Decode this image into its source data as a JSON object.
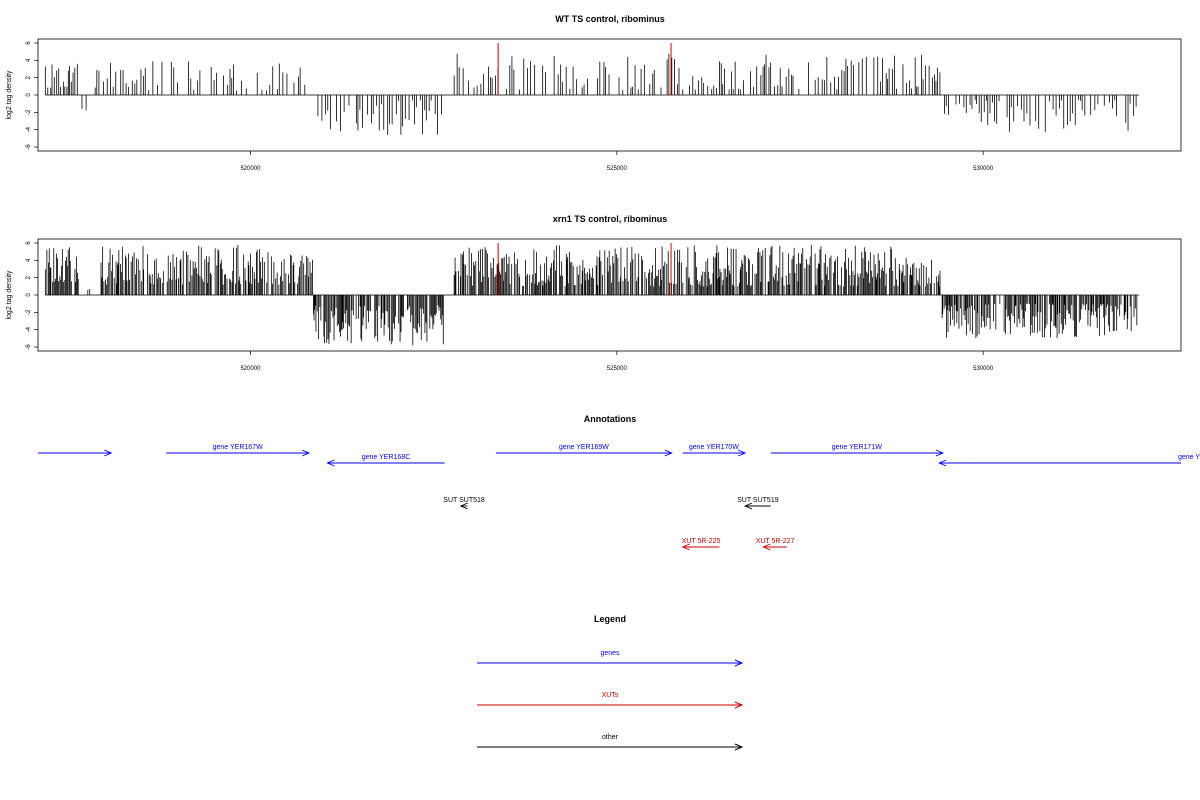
{
  "chart_data": [
    {
      "type": "bar",
      "title": "WT TS control, ribominus",
      "ylabel": "log2 tag density",
      "ylim": [
        -6,
        6
      ],
      "yticks": [
        "6",
        "4",
        "2",
        "0",
        "-2",
        "-4",
        "-6"
      ],
      "xlim": [
        517100,
        532700
      ],
      "xticks": [
        520000,
        525000,
        530000
      ],
      "xtick_labels": [
        "520000",
        "525000",
        "530000"
      ],
      "grid": false,
      "segments": [
        {
          "start": 517200,
          "end": 517650,
          "sign": 1,
          "min": 0.8,
          "max": 3.6,
          "step": 30
        },
        {
          "start": 517700,
          "end": 517780,
          "sign": -1,
          "min": 1.5,
          "max": 2.2,
          "step": 40
        },
        {
          "start": 517880,
          "end": 520850,
          "sign": 1,
          "min": 0.5,
          "max": 3.9,
          "step": 45
        },
        {
          "start": 520920,
          "end": 522620,
          "sign": -1,
          "min": 0.6,
          "max": 4.8,
          "step": 40
        },
        {
          "start": 522780,
          "end": 529420,
          "sign": 1,
          "min": 0.6,
          "max": 4.8,
          "step": 38
        },
        {
          "start": 529440,
          "end": 532100,
          "sign": -1,
          "min": 0.6,
          "max": 4.3,
          "step": 38
        }
      ],
      "highlight_lines": [
        {
          "x": 523380,
          "value": 6,
          "color": "#cc0000"
        },
        {
          "x": 525740,
          "value": 6,
          "color": "#cc0000"
        }
      ]
    },
    {
      "type": "bar",
      "title": "xrn1 TS control, ribominus",
      "ylabel": "log2 tag density",
      "ylim": [
        -6,
        6
      ],
      "yticks": [
        "6",
        "4",
        "2",
        "0",
        "-2",
        "-4",
        "-6"
      ],
      "xlim": [
        517100,
        532700
      ],
      "xticks": [
        520000,
        525000,
        530000
      ],
      "xtick_labels": [
        "520000",
        "525000",
        "530000"
      ],
      "grid": false,
      "segments": [
        {
          "start": 517200,
          "end": 517650,
          "sign": 1,
          "min": 1.5,
          "max": 5.5,
          "step": 12
        },
        {
          "start": 517780,
          "end": 517900,
          "sign": 1,
          "min": 0.5,
          "max": 1.2,
          "step": 40
        },
        {
          "start": 517960,
          "end": 520850,
          "sign": 1,
          "min": 1.2,
          "max": 5.8,
          "step": 16
        },
        {
          "start": 520860,
          "end": 522650,
          "sign": -1,
          "min": 1.2,
          "max": 5.8,
          "step": 14
        },
        {
          "start": 522780,
          "end": 529420,
          "sign": 1,
          "min": 1.0,
          "max": 5.8,
          "step": 14
        },
        {
          "start": 529440,
          "end": 532100,
          "sign": -1,
          "min": 1.0,
          "max": 5.0,
          "step": 14
        }
      ],
      "highlight_lines": [
        {
          "x": 523380,
          "value": 6,
          "color": "#cc0000"
        },
        {
          "x": 525740,
          "value": 6,
          "color": "#cc0000"
        }
      ]
    }
  ],
  "annotations": {
    "title": "Annotations",
    "features": [
      {
        "label": "",
        "start": 517100,
        "end": 518100,
        "dir": 1,
        "row": 0,
        "color": "#0000ff"
      },
      {
        "label": "gene YER167W",
        "start": 518850,
        "end": 520800,
        "dir": 1,
        "row": 0,
        "color": "#0000ff"
      },
      {
        "label": "gene YER168C",
        "start": 521050,
        "end": 522650,
        "dir": -1,
        "row": 1,
        "color": "#0000ff"
      },
      {
        "label": "gene YER169W",
        "start": 523350,
        "end": 525750,
        "dir": 1,
        "row": 0,
        "color": "#0000ff"
      },
      {
        "label": "gene YER170W",
        "start": 525900,
        "end": 526750,
        "dir": 1,
        "row": 0,
        "color": "#0000ff"
      },
      {
        "label": "gene YER171W",
        "start": 527100,
        "end": 529450,
        "dir": 1,
        "row": 0,
        "color": "#0000ff"
      },
      {
        "label": "gene Y",
        "start": 529400,
        "end": 532700,
        "dir": -1,
        "row": 1,
        "color": "#0000ff",
        "label_anchor": "end"
      },
      {
        "label": "SUT SUT518",
        "start": 522870,
        "end": 522960,
        "dir": -1,
        "row": 2,
        "color": "#000000"
      },
      {
        "label": "SUT SUT519",
        "start": 526750,
        "end": 527100,
        "dir": -1,
        "row": 2,
        "color": "#000000"
      },
      {
        "label": "XUT 5R-225",
        "start": 525900,
        "end": 526400,
        "dir": -1,
        "row": 3,
        "color": "#cc0000"
      },
      {
        "label": "XUT 5R-227",
        "start": 527000,
        "end": 527320,
        "dir": -1,
        "row": 3,
        "color": "#cc0000"
      }
    ]
  },
  "legend": {
    "title": "Legend",
    "items": [
      {
        "label": "genes",
        "color": "#0000ff"
      },
      {
        "label": "XUTs",
        "color": "#cc0000"
      },
      {
        "label": "other",
        "color": "#000000"
      }
    ]
  }
}
